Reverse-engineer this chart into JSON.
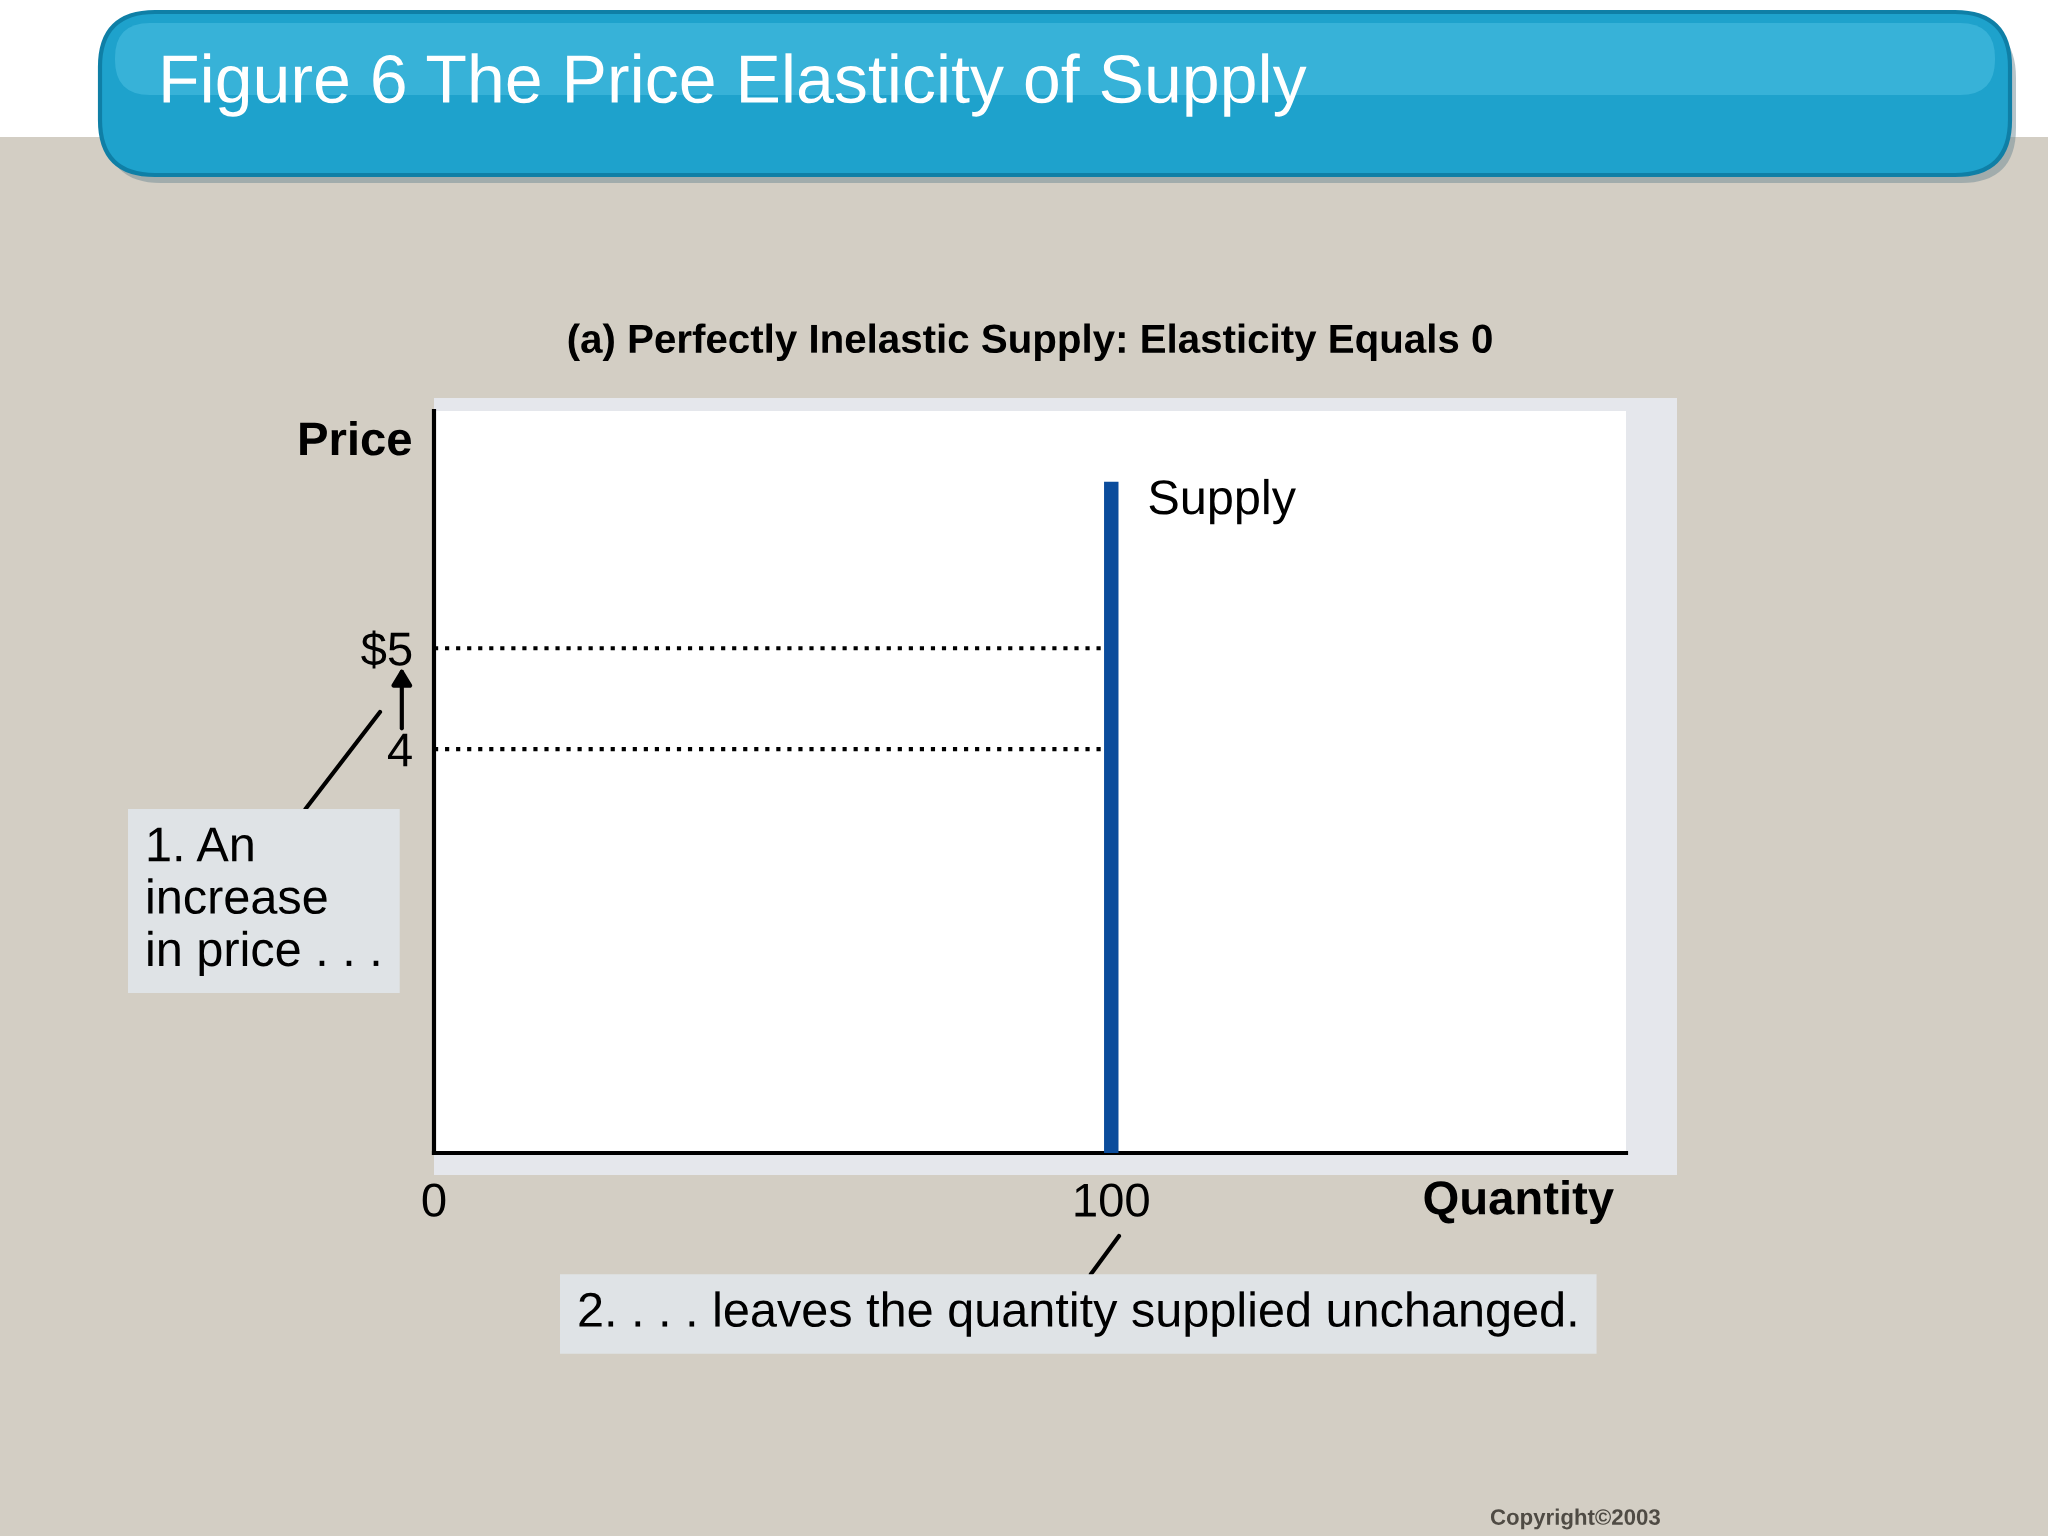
{
  "chart_data": {
    "type": "line",
    "title": "Figure 6 The Price Elasticity of Supply",
    "subtitle": "(a) Perfectly Inelastic Supply: Elasticity Equals 0",
    "xlabel": "Quantity",
    "ylabel": "Price",
    "series": [
      {
        "name": "Supply",
        "color": "#0b4c9c",
        "x": [
          100,
          100
        ],
        "values": [
          0,
          6.65
        ]
      }
    ],
    "xlim": [
      0,
      176
    ],
    "ylim": [
      0,
      7.35
    ],
    "xticks": [
      0,
      100
    ],
    "yticks": [
      4,
      {
        "value": 5,
        "label": "$5"
      }
    ],
    "ref_lines": [
      {
        "axis": "y",
        "value": 5,
        "color": "#000000",
        "line_style": "dotted"
      },
      {
        "axis": "y",
        "value": 4,
        "color": "#000000",
        "line_style": "dotted"
      }
    ],
    "annotations": [
      "1. An\nincrease\nin price . . .",
      "2. . . . leaves the quantity supplied unchanged.",
      "Copyright©2003"
    ]
  }
}
